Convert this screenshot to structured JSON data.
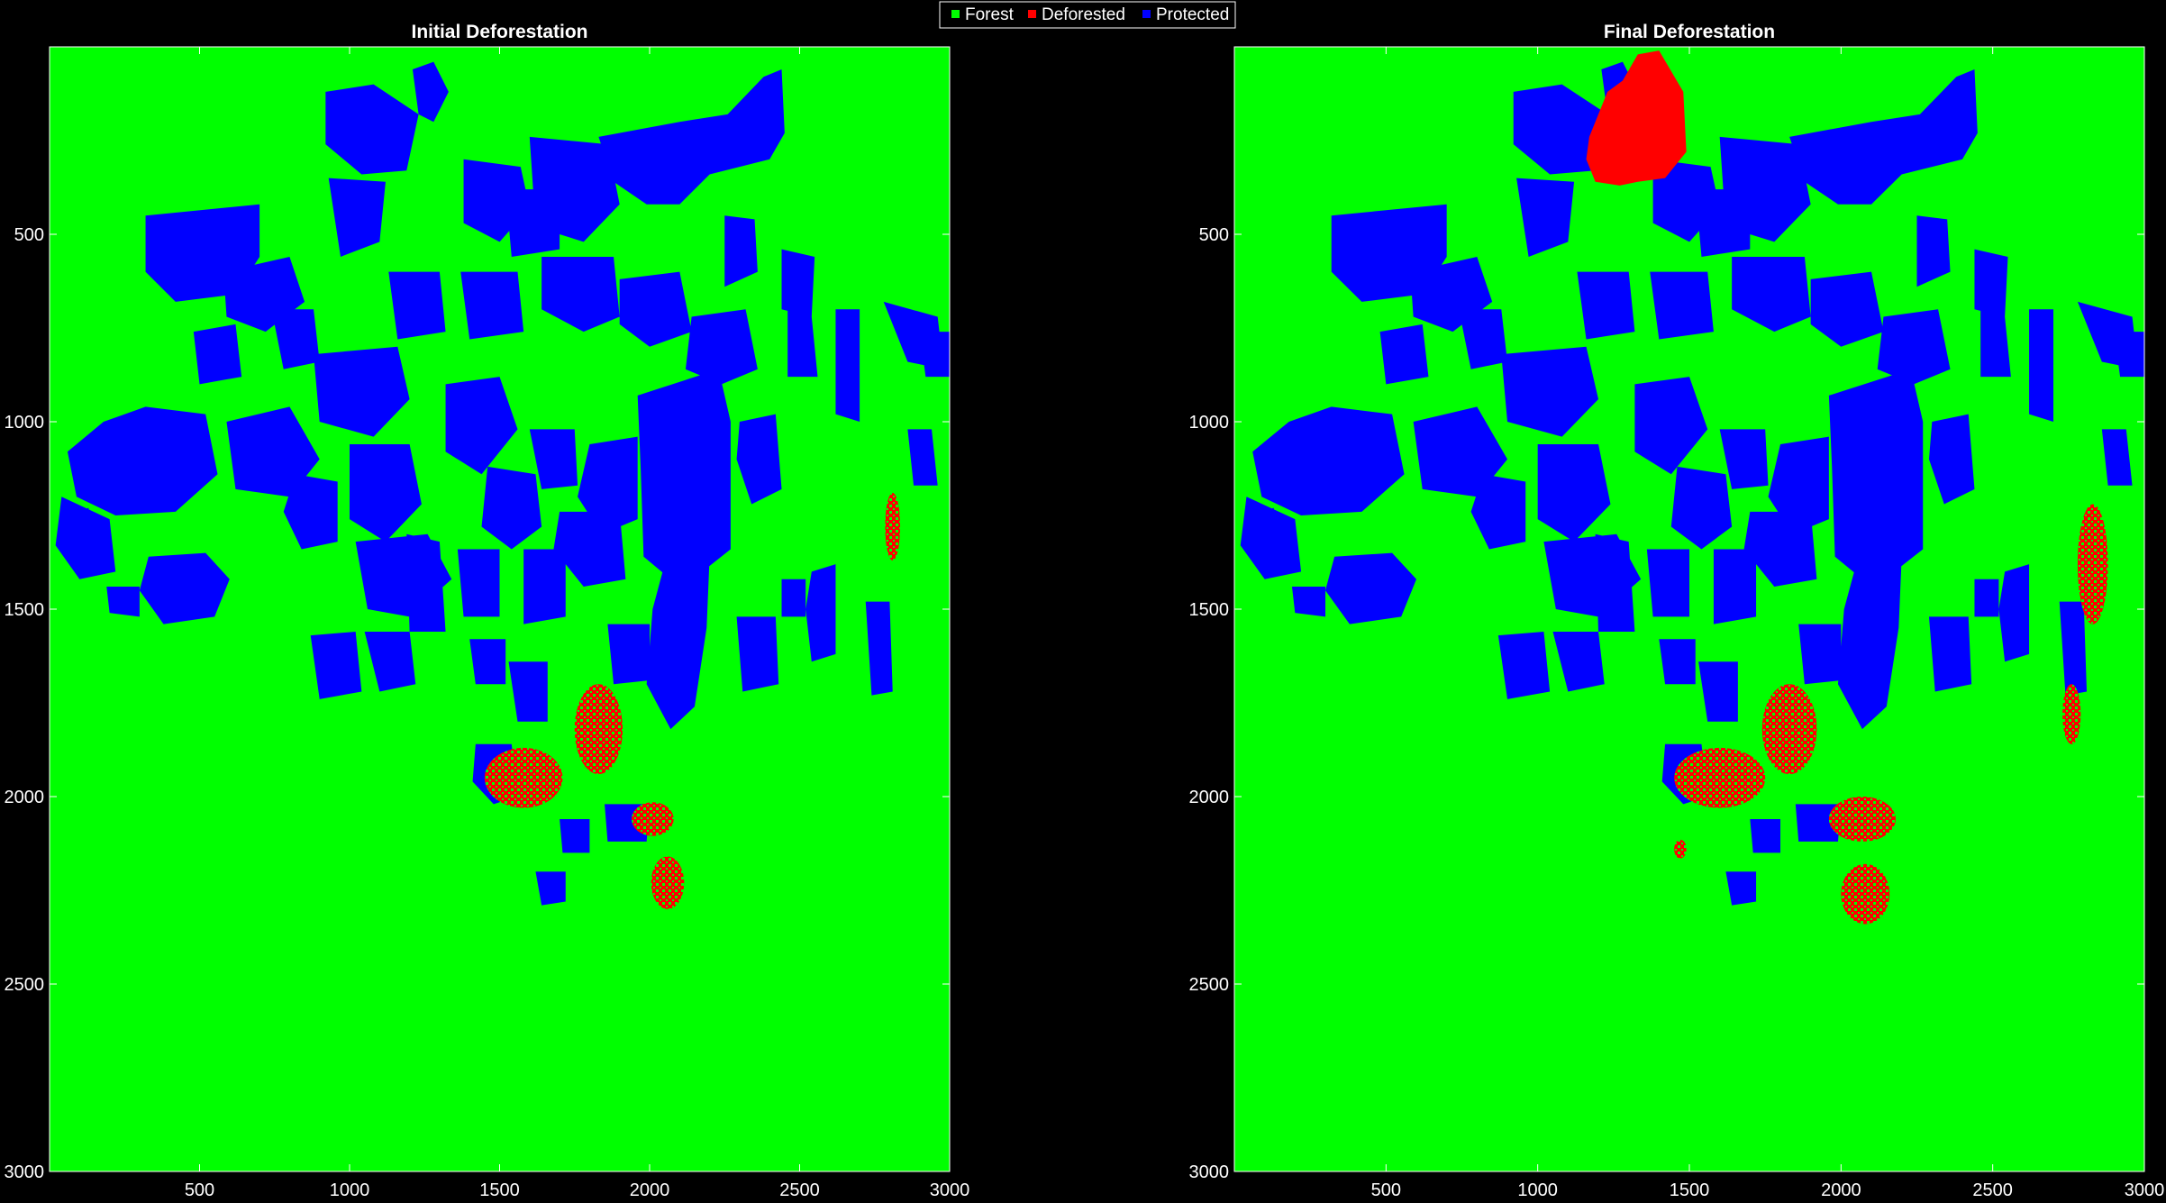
{
  "legend": {
    "items": [
      {
        "label": "Forest",
        "color": "#00ff00"
      },
      {
        "label": "Deforested",
        "color": "#ff0000"
      },
      {
        "label": "Protected",
        "color": "#0000ff"
      }
    ],
    "placement": "top-center"
  },
  "colors": {
    "forest": "#00ff00",
    "deforested": "#ff0000",
    "protected": "#0000ff",
    "background": "#000000"
  },
  "chart_data": [
    {
      "type": "heatmap",
      "title": "Initial Deforestation",
      "xlim": [
        0,
        3000
      ],
      "ylim": [
        0,
        3000
      ],
      "y_reversed": true,
      "x_ticks": [
        500,
        1000,
        1500,
        2000,
        2500,
        3000
      ],
      "y_ticks": [
        500,
        1000,
        1500,
        2000,
        2500,
        3000
      ],
      "x_tick_labels": [
        "500",
        "1000",
        "1500",
        "2000",
        "2500",
        "3000"
      ],
      "y_tick_labels": [
        "500",
        "1000",
        "1500",
        "2000",
        "2500",
        "3000"
      ],
      "classes": [
        "Forest",
        "Deforested",
        "Protected"
      ],
      "deforested_clusters": [
        {
          "x": 1580,
          "y": 1950,
          "rx": 130,
          "ry": 80
        },
        {
          "x": 1830,
          "y": 1820,
          "rx": 80,
          "ry": 120
        },
        {
          "x": 2010,
          "y": 2060,
          "rx": 70,
          "ry": 45
        },
        {
          "x": 2060,
          "y": 2230,
          "rx": 55,
          "ry": 70
        },
        {
          "x": 2810,
          "y": 1280,
          "rx": 25,
          "ry": 90
        }
      ],
      "deforested_region": null
    },
    {
      "type": "heatmap",
      "title": "Final Deforestation",
      "xlim": [
        0,
        3000
      ],
      "ylim": [
        0,
        3000
      ],
      "y_reversed": true,
      "x_ticks": [
        500,
        1000,
        1500,
        2000,
        2500,
        3000
      ],
      "y_ticks": [
        500,
        1000,
        1500,
        2000,
        2500,
        3000
      ],
      "x_tick_labels": [
        "500",
        "1000",
        "1500",
        "2000",
        "2500",
        "3000"
      ],
      "y_tick_labels": [
        "500",
        "1000",
        "1500",
        "2000",
        "2500",
        "3000"
      ],
      "classes": [
        "Forest",
        "Deforested",
        "Protected"
      ],
      "deforested_clusters": [
        {
          "x": 1600,
          "y": 1950,
          "rx": 150,
          "ry": 80
        },
        {
          "x": 1830,
          "y": 1820,
          "rx": 90,
          "ry": 120
        },
        {
          "x": 2070,
          "y": 2060,
          "rx": 110,
          "ry": 60
        },
        {
          "x": 2080,
          "y": 2260,
          "rx": 80,
          "ry": 80
        },
        {
          "x": 2830,
          "y": 1380,
          "rx": 50,
          "ry": 160
        },
        {
          "x": 2760,
          "y": 1780,
          "rx": 30,
          "ry": 80
        },
        {
          "x": 1470,
          "y": 2140,
          "rx": 20,
          "ry": 25
        }
      ],
      "deforested_region": {
        "points": [
          [
            1170,
            240
          ],
          [
            1230,
            120
          ],
          [
            1280,
            90
          ],
          [
            1330,
            20
          ],
          [
            1400,
            10
          ],
          [
            1480,
            120
          ],
          [
            1490,
            280
          ],
          [
            1420,
            350
          ],
          [
            1330,
            360
          ],
          [
            1270,
            370
          ],
          [
            1190,
            360
          ],
          [
            1160,
            300
          ]
        ]
      }
    }
  ]
}
